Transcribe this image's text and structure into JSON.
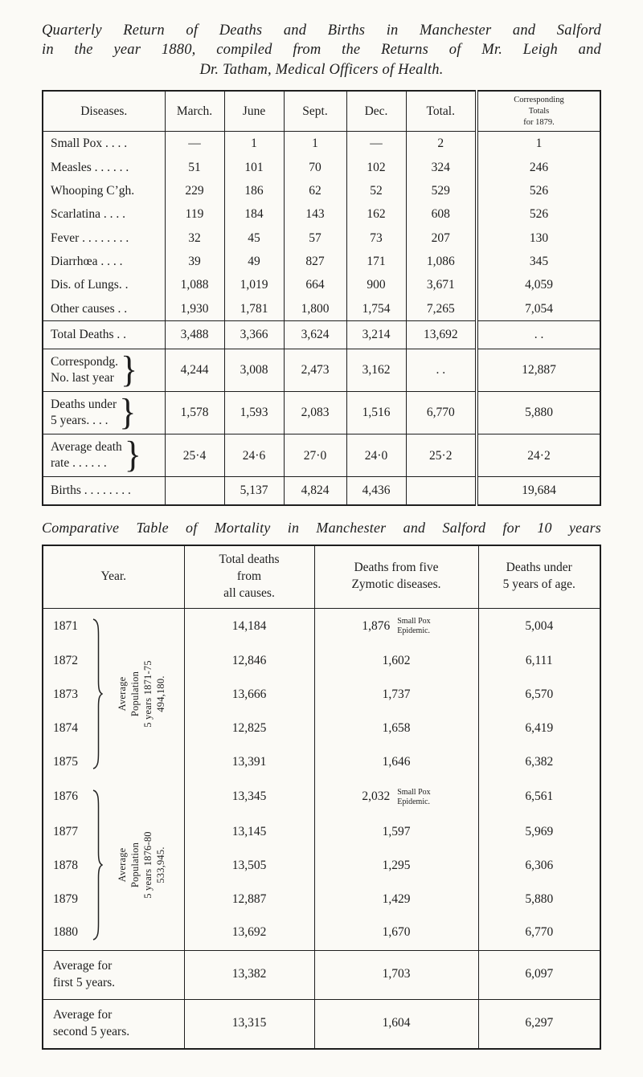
{
  "colors": {
    "paper": "#fbfaf6",
    "ink": "#1d1d1d"
  },
  "title": {
    "lines": [
      "Quarterly Return of Deaths and Births in Manchester and Salford",
      "in the year 1880, compiled from the Returns of Mr. Leigh and",
      "Dr. Tatham, Medical Officers of Health."
    ]
  },
  "quarterly_table": {
    "headers": [
      "Diseases.",
      "March.",
      "June",
      "Sept.",
      "Dec.",
      "Total."
    ],
    "corresponding_header": [
      "Corresponding",
      "Totals",
      "for 1879."
    ],
    "disease_rows": [
      {
        "name": "small-pox",
        "label": "Small Pox . . . .",
        "values": [
          "—",
          "1",
          "1",
          "—",
          "2",
          "1"
        ]
      },
      {
        "name": "measles",
        "label": "Measles . . . . . .",
        "values": [
          "51",
          "101",
          "70",
          "102",
          "324",
          "246"
        ]
      },
      {
        "name": "whooping-cough",
        "label": "Whooping C’gh.",
        "values": [
          "229",
          "186",
          "62",
          "52",
          "529",
          "526"
        ]
      },
      {
        "name": "scarlatina",
        "label": "Scarlatina . . . .",
        "values": [
          "119",
          "184",
          "143",
          "162",
          "608",
          "526"
        ]
      },
      {
        "name": "fever",
        "label": "Fever . . . . . . . .",
        "values": [
          "32",
          "45",
          "57",
          "73",
          "207",
          "130"
        ]
      },
      {
        "name": "diarrhoea",
        "label": "Diarrhœa . . . .",
        "values": [
          "39",
          "49",
          "827",
          "171",
          "1,086",
          "345"
        ]
      },
      {
        "name": "diseases-of-lungs",
        "label": "Dis. of Lungs. .",
        "values": [
          "1,088",
          "1,019",
          "664",
          "900",
          "3,671",
          "4,059"
        ]
      },
      {
        "name": "other-causes",
        "label": "Other causes . .",
        "values": [
          "1,930",
          "1,781",
          "1,800",
          "1,754",
          "7,265",
          "7,054"
        ]
      }
    ],
    "summary_rows": [
      {
        "name": "total-deaths",
        "brace": false,
        "label_lines": [
          "Total Deaths . ."
        ],
        "values": [
          "3,488",
          "3,366",
          "3,624",
          "3,214",
          "13,692",
          ". ."
        ]
      },
      {
        "name": "corresponding-number-last-year",
        "brace": true,
        "label_lines": [
          "Correspondg.",
          "No. last year"
        ],
        "values": [
          "4,244",
          "3,008",
          "2,473",
          "3,162",
          ". .",
          "12,887"
        ]
      },
      {
        "name": "deaths-under-5-years",
        "brace": true,
        "label_lines": [
          "Deaths under",
          "5 years. . . ."
        ],
        "values": [
          "1,578",
          "1,593",
          "2,083",
          "1,516",
          "6,770",
          "5,880"
        ]
      },
      {
        "name": "average-death-rate",
        "brace": true,
        "label_lines": [
          "Average death",
          "rate . . . . . ."
        ],
        "values": [
          "25·4",
          "24·6",
          "27·0",
          "24·0",
          "25·2",
          "24·2"
        ]
      },
      {
        "name": "births",
        "brace": false,
        "label_lines": [
          "Births . . . . . . . ."
        ],
        "values": [
          "",
          "5,137",
          "4,824",
          "4,436",
          "",
          "19,684"
        ]
      }
    ]
  },
  "comparative": {
    "title": "Comparative Table of Mortality in Manchester and Salford for 10 years",
    "headers": {
      "year": "Year.",
      "total_deaths": [
        "Total deaths",
        "from",
        "all causes."
      ],
      "zymotic": [
        "Deaths from five",
        "Zymotic diseases."
      ],
      "under5": [
        "Deaths under",
        "5 years of age."
      ]
    },
    "groups": [
      {
        "annotation_lines": [
          "Average",
          "Population",
          "5 years 1871-75",
          "494,180."
        ],
        "years": [
          {
            "year": "1871",
            "total": "14,184",
            "zymotic": "1,876",
            "note_lines": [
              "Small Pox",
              "Epidemic."
            ],
            "under5": "5,004"
          },
          {
            "year": "1872",
            "total": "12,846",
            "zymotic": "1,602",
            "under5": "6,111"
          },
          {
            "year": "1873",
            "total": "13,666",
            "zymotic": "1,737",
            "under5": "6,570"
          },
          {
            "year": "1874",
            "total": "12,825",
            "zymotic": "1,658",
            "under5": "6,419"
          },
          {
            "year": "1875",
            "total": "13,391",
            "zymotic": "1,646",
            "under5": "6,382"
          }
        ]
      },
      {
        "annotation_lines": [
          "Average",
          "Population",
          "5 years 1876-80",
          "533,945."
        ],
        "years": [
          {
            "year": "1876",
            "total": "13,345",
            "zymotic": "2,032",
            "note_lines": [
              "Small Pox",
              "Epidemic."
            ],
            "under5": "6,561"
          },
          {
            "year": "1877",
            "total": "13,145",
            "zymotic": "1,597",
            "under5": "5,969"
          },
          {
            "year": "1878",
            "total": "13,505",
            "zymotic": "1,295",
            "under5": "6,306"
          },
          {
            "year": "1879",
            "total": "12,887",
            "zymotic": "1,429",
            "under5": "5,880"
          },
          {
            "year": "1880",
            "total": "13,692",
            "zymotic": "1,670",
            "under5": "6,770"
          }
        ]
      }
    ],
    "average_rows": [
      {
        "name": "average-first-5-years",
        "label_lines": [
          "Average for",
          "first 5 years."
        ],
        "total": "13,382",
        "zymotic": "1,703",
        "under5": "6,097"
      },
      {
        "name": "average-second-5-years",
        "label_lines": [
          "Average for",
          "second 5 years."
        ],
        "total": "13,315",
        "zymotic": "1,604",
        "under5": "6,297"
      }
    ]
  }
}
